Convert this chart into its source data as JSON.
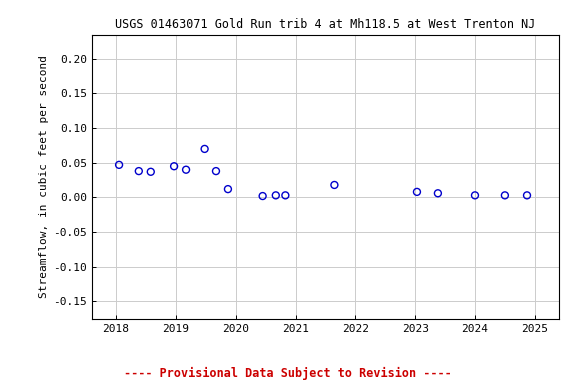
{
  "title": "USGS 01463071 Gold Run trib 4 at Mh118.5 at West Trenton NJ",
  "ylabel": "Streamflow, in cubic feet per second",
  "footnote": "---- Provisional Data Subject to Revision ----",
  "xlim": [
    2017.6,
    2025.4
  ],
  "ylim": [
    -0.175,
    0.235
  ],
  "yticks": [
    -0.15,
    -0.1,
    -0.05,
    0.0,
    0.05,
    0.1,
    0.15,
    0.2
  ],
  "xticks": [
    2018,
    2019,
    2020,
    2021,
    2022,
    2023,
    2024,
    2025
  ],
  "x_data": [
    2018.05,
    2018.38,
    2018.58,
    2018.97,
    2019.17,
    2019.48,
    2019.67,
    2019.87,
    2020.45,
    2020.67,
    2020.83,
    2021.65,
    2023.03,
    2023.38,
    2024.0,
    2024.5,
    2024.87
  ],
  "y_data": [
    0.047,
    0.038,
    0.037,
    0.045,
    0.04,
    0.07,
    0.038,
    0.012,
    0.002,
    0.003,
    0.003,
    0.018,
    0.008,
    0.006,
    0.003,
    0.003,
    0.003
  ],
  "marker_color": "#0000cc",
  "marker_size": 5,
  "marker_lw": 1.0,
  "grid_color": "#cccccc",
  "grid_lw": 0.7,
  "bg_color": "#ffffff",
  "footnote_color": "#cc0000",
  "title_fontsize": 8.5,
  "label_fontsize": 8,
  "tick_fontsize": 8,
  "footnote_fontsize": 8.5
}
